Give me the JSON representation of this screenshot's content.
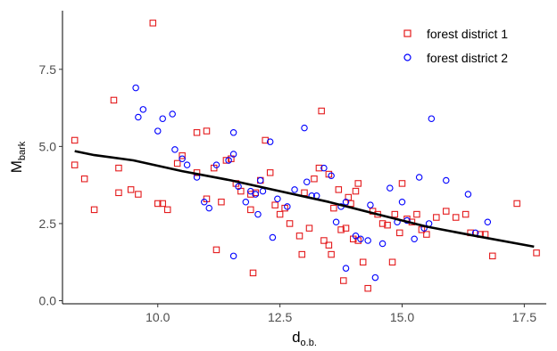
{
  "chart_data": {
    "type": "scatter",
    "xlabel_main": "d",
    "xlabel_sub": "o.b.",
    "ylabel_main": "M",
    "ylabel_sub": "bark",
    "xlim": [
      8.05,
      17.95
    ],
    "ylim": [
      -0.1,
      9.4
    ],
    "x_ticks": [
      10.0,
      12.5,
      15.0,
      17.5
    ],
    "x_tick_labels": [
      "10.0",
      "12.5",
      "15.0",
      "17.5"
    ],
    "y_ticks": [
      0.0,
      2.5,
      5.0,
      7.5
    ],
    "y_tick_labels": [
      "0.0",
      "2.5",
      "5.0",
      "7.5"
    ],
    "grid": false,
    "legend_position": "top-right",
    "series": [
      {
        "name": "forest district 1",
        "marker": "square",
        "color": "#e41a1c",
        "points": [
          [
            8.3,
            5.2
          ],
          [
            8.3,
            4.4
          ],
          [
            8.5,
            3.95
          ],
          [
            8.7,
            2.95
          ],
          [
            9.1,
            6.5
          ],
          [
            9.2,
            4.3
          ],
          [
            9.2,
            3.5
          ],
          [
            9.45,
            3.6
          ],
          [
            9.6,
            3.45
          ],
          [
            9.9,
            9.0
          ],
          [
            10.0,
            3.15
          ],
          [
            10.1,
            3.15
          ],
          [
            10.2,
            2.95
          ],
          [
            10.4,
            4.45
          ],
          [
            10.5,
            4.7
          ],
          [
            10.8,
            4.15
          ],
          [
            10.8,
            5.45
          ],
          [
            11.0,
            5.5
          ],
          [
            11.0,
            3.3
          ],
          [
            11.15,
            4.3
          ],
          [
            11.2,
            1.65
          ],
          [
            11.3,
            3.2
          ],
          [
            11.4,
            4.55
          ],
          [
            11.5,
            4.6
          ],
          [
            11.6,
            3.8
          ],
          [
            11.7,
            3.55
          ],
          [
            11.9,
            3.45
          ],
          [
            11.9,
            2.95
          ],
          [
            11.95,
            0.9
          ],
          [
            12.0,
            3.5
          ],
          [
            12.1,
            3.9
          ],
          [
            12.2,
            5.2
          ],
          [
            12.3,
            4.15
          ],
          [
            12.4,
            3.1
          ],
          [
            12.5,
            2.8
          ],
          [
            12.6,
            3.0
          ],
          [
            12.7,
            2.5
          ],
          [
            12.9,
            2.1
          ],
          [
            12.95,
            1.5
          ],
          [
            13.0,
            3.5
          ],
          [
            13.1,
            2.35
          ],
          [
            13.2,
            3.95
          ],
          [
            13.3,
            4.3
          ],
          [
            13.35,
            6.15
          ],
          [
            13.4,
            1.95
          ],
          [
            13.5,
            1.8
          ],
          [
            13.5,
            4.1
          ],
          [
            13.55,
            1.5
          ],
          [
            13.6,
            3.0
          ],
          [
            13.7,
            3.6
          ],
          [
            13.75,
            2.3
          ],
          [
            13.8,
            0.65
          ],
          [
            13.85,
            2.35
          ],
          [
            13.9,
            3.35
          ],
          [
            13.95,
            3.15
          ],
          [
            14.0,
            2.0
          ],
          [
            14.05,
            3.55
          ],
          [
            14.1,
            1.95
          ],
          [
            14.1,
            3.8
          ],
          [
            14.2,
            1.25
          ],
          [
            14.3,
            0.4
          ],
          [
            14.4,
            2.9
          ],
          [
            14.5,
            2.8
          ],
          [
            14.6,
            2.5
          ],
          [
            14.7,
            2.45
          ],
          [
            14.8,
            1.25
          ],
          [
            14.85,
            2.8
          ],
          [
            14.95,
            2.2
          ],
          [
            15.0,
            3.8
          ],
          [
            15.1,
            2.65
          ],
          [
            15.2,
            2.55
          ],
          [
            15.3,
            2.8
          ],
          [
            15.4,
            2.3
          ],
          [
            15.5,
            2.15
          ],
          [
            15.7,
            2.7
          ],
          [
            15.9,
            2.9
          ],
          [
            16.1,
            2.7
          ],
          [
            16.3,
            2.8
          ],
          [
            16.4,
            2.2
          ],
          [
            16.6,
            2.15
          ],
          [
            16.7,
            2.15
          ],
          [
            16.85,
            1.45
          ],
          [
            17.35,
            3.15
          ],
          [
            17.75,
            1.55
          ]
        ]
      },
      {
        "name": "forest district 2",
        "marker": "circle",
        "color": "#0000ff",
        "points": [
          [
            9.55,
            6.9
          ],
          [
            9.6,
            5.95
          ],
          [
            9.7,
            6.2
          ],
          [
            10.0,
            5.5
          ],
          [
            10.1,
            5.9
          ],
          [
            10.3,
            6.05
          ],
          [
            10.35,
            4.9
          ],
          [
            10.5,
            4.6
          ],
          [
            10.6,
            4.4
          ],
          [
            10.8,
            4.0
          ],
          [
            10.95,
            3.2
          ],
          [
            11.05,
            3.0
          ],
          [
            11.2,
            4.4
          ],
          [
            11.45,
            4.55
          ],
          [
            11.55,
            4.75
          ],
          [
            11.55,
            5.45
          ],
          [
            11.55,
            1.45
          ],
          [
            11.65,
            3.7
          ],
          [
            11.8,
            3.2
          ],
          [
            11.9,
            3.55
          ],
          [
            12.0,
            3.45
          ],
          [
            12.05,
            2.8
          ],
          [
            12.1,
            3.9
          ],
          [
            12.15,
            3.55
          ],
          [
            12.3,
            5.15
          ],
          [
            12.35,
            2.05
          ],
          [
            12.45,
            3.3
          ],
          [
            12.65,
            3.05
          ],
          [
            12.8,
            3.6
          ],
          [
            13.0,
            5.6
          ],
          [
            13.05,
            3.85
          ],
          [
            13.15,
            3.4
          ],
          [
            13.25,
            3.4
          ],
          [
            13.4,
            4.3
          ],
          [
            13.55,
            4.05
          ],
          [
            13.65,
            2.55
          ],
          [
            13.75,
            3.05
          ],
          [
            13.85,
            3.2
          ],
          [
            13.85,
            1.05
          ],
          [
            14.05,
            2.1
          ],
          [
            14.15,
            2.0
          ],
          [
            14.3,
            1.95
          ],
          [
            14.35,
            3.1
          ],
          [
            14.45,
            0.75
          ],
          [
            14.6,
            1.85
          ],
          [
            14.75,
            3.65
          ],
          [
            14.9,
            2.55
          ],
          [
            15.0,
            3.2
          ],
          [
            15.1,
            2.6
          ],
          [
            15.25,
            2.0
          ],
          [
            15.35,
            4.0
          ],
          [
            15.45,
            2.35
          ],
          [
            15.55,
            2.5
          ],
          [
            15.6,
            5.9
          ],
          [
            15.9,
            3.9
          ],
          [
            16.35,
            3.45
          ],
          [
            16.5,
            2.2
          ],
          [
            16.75,
            2.55
          ]
        ]
      },
      {
        "name": "",
        "type": "line",
        "color": "#000000",
        "points": [
          [
            8.3,
            4.85
          ],
          [
            8.7,
            4.72
          ],
          [
            9.5,
            4.55
          ],
          [
            10.5,
            4.2
          ],
          [
            11.5,
            3.9
          ],
          [
            12.5,
            3.55
          ],
          [
            13.5,
            3.2
          ],
          [
            14.5,
            2.8
          ],
          [
            15.5,
            2.4
          ],
          [
            16.5,
            2.1
          ],
          [
            17.7,
            1.75
          ]
        ]
      }
    ]
  }
}
